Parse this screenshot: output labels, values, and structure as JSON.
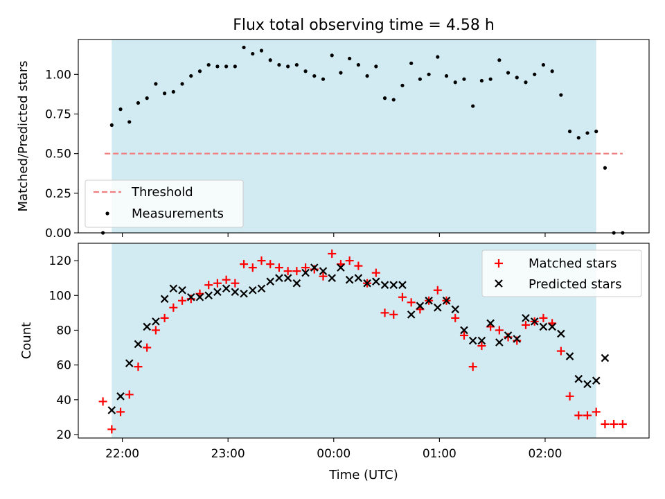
{
  "figure": {
    "title": "Flux total observing time = 4.58 h"
  },
  "chart_data": [
    {
      "type": "scatter",
      "panel": "top",
      "ylabel": "Matched/Predicted stars",
      "xlabel": "",
      "x_is_time_utc": true,
      "xlim": [
        "21:35",
        "02:59"
      ],
      "ylim": [
        0.0,
        1.22
      ],
      "yticks": [
        0.0,
        0.25,
        0.5,
        0.75,
        1.0
      ],
      "ytick_labels": [
        "0.00",
        "0.25",
        "0.50",
        "0.75",
        "1.00"
      ],
      "xtick_labels": [
        "22:00",
        "23:00",
        "00:00",
        "01:00",
        "02:00"
      ],
      "xticks": [
        "22:00",
        "23:00",
        "00:00",
        "01:00",
        "02:00"
      ],
      "shaded_span": {
        "from": "21:54",
        "to": "02:29",
        "color": "#add8e6"
      },
      "threshold": {
        "name": "Threshold",
        "value": 0.5,
        "from": "21:50",
        "to": "02:44",
        "color": "#f08080"
      },
      "legend": {
        "placement": "lower-left",
        "entries": [
          "Threshold",
          "Measurements"
        ]
      },
      "series": [
        {
          "name": "Measurements",
          "color": "#000000",
          "marker": "dot",
          "x": [
            "21:49",
            "21:54",
            "21:59",
            "22:04",
            "22:09",
            "22:14",
            "22:19",
            "22:24",
            "22:29",
            "22:34",
            "22:39",
            "22:44",
            "22:49",
            "22:54",
            "22:59",
            "23:04",
            "23:09",
            "23:14",
            "23:19",
            "23:24",
            "23:29",
            "23:34",
            "23:39",
            "23:44",
            "23:49",
            "23:54",
            "23:59",
            "00:04",
            "00:09",
            "00:14",
            "00:19",
            "00:24",
            "00:29",
            "00:34",
            "00:39",
            "00:44",
            "00:49",
            "00:54",
            "00:59",
            "01:04",
            "01:09",
            "01:14",
            "01:19",
            "01:24",
            "01:29",
            "01:34",
            "01:39",
            "01:44",
            "01:49",
            "01:54",
            "01:59",
            "02:04",
            "02:09",
            "02:14",
            "02:19",
            "02:24",
            "02:29",
            "02:34",
            "02:39",
            "02:44"
          ],
          "values": [
            0.0,
            0.68,
            0.78,
            0.7,
            0.82,
            0.85,
            0.94,
            0.88,
            0.89,
            0.94,
            0.99,
            1.02,
            1.06,
            1.05,
            1.05,
            1.05,
            1.17,
            1.13,
            1.15,
            1.09,
            1.06,
            1.05,
            1.06,
            1.02,
            0.99,
            0.97,
            1.12,
            1.01,
            1.1,
            1.06,
            0.99,
            1.05,
            0.85,
            0.84,
            0.93,
            1.07,
            0.97,
            1.0,
            1.11,
            0.99,
            0.95,
            0.97,
            0.8,
            0.96,
            0.97,
            1.09,
            1.01,
            0.98,
            0.95,
            1.0,
            1.06,
            1.02,
            0.87,
            0.64,
            0.6,
            0.63,
            0.64,
            0.41,
            0.0,
            0.0
          ]
        }
      ]
    },
    {
      "type": "scatter",
      "panel": "bottom",
      "ylabel": "Count",
      "xlabel": "Time (UTC)",
      "x_is_time_utc": true,
      "xlim": [
        "21:35",
        "02:59"
      ],
      "ylim": [
        18,
        130
      ],
      "yticks": [
        20,
        40,
        60,
        80,
        100,
        120
      ],
      "ytick_labels": [
        "20",
        "40",
        "60",
        "80",
        "100",
        "120"
      ],
      "xtick_labels": [
        "22:00",
        "23:00",
        "00:00",
        "01:00",
        "02:00"
      ],
      "xticks": [
        "22:00",
        "23:00",
        "00:00",
        "01:00",
        "02:00"
      ],
      "shaded_span": {
        "from": "21:54",
        "to": "02:29",
        "color": "#add8e6"
      },
      "legend": {
        "placement": "top-right",
        "entries": [
          "Matched stars",
          "Predicted stars"
        ]
      },
      "series": [
        {
          "name": "Matched stars",
          "color": "#ff0000",
          "marker": "plus",
          "x": [
            "21:49",
            "21:54",
            "21:59",
            "22:04",
            "22:09",
            "22:14",
            "22:19",
            "22:24",
            "22:29",
            "22:34",
            "22:39",
            "22:44",
            "22:49",
            "22:54",
            "22:59",
            "23:04",
            "23:09",
            "23:14",
            "23:19",
            "23:24",
            "23:29",
            "23:34",
            "23:39",
            "23:44",
            "23:49",
            "23:54",
            "23:59",
            "00:04",
            "00:09",
            "00:14",
            "00:19",
            "00:24",
            "00:29",
            "00:34",
            "00:39",
            "00:44",
            "00:49",
            "00:54",
            "00:59",
            "01:04",
            "01:09",
            "01:14",
            "01:19",
            "01:24",
            "01:29",
            "01:34",
            "01:39",
            "01:44",
            "01:49",
            "01:54",
            "01:59",
            "02:04",
            "02:09",
            "02:14",
            "02:19",
            "02:24",
            "02:29",
            "02:34",
            "02:39",
            "02:44"
          ],
          "values": [
            39,
            23,
            33,
            43,
            59,
            70,
            80,
            87,
            93,
            97,
            98,
            101,
            106,
            107,
            109,
            107,
            118,
            116,
            120,
            118,
            116,
            114,
            114,
            116,
            115,
            111,
            124,
            118,
            120,
            117,
            107,
            113,
            90,
            89,
            99,
            96,
            92,
            97,
            103,
            97,
            87,
            77,
            59,
            71,
            82,
            80,
            76,
            74,
            83,
            85,
            87,
            84,
            68,
            42,
            31,
            31,
            33,
            26,
            26,
            26
          ]
        },
        {
          "name": "Predicted stars",
          "color": "#000000",
          "marker": "x",
          "x": [
            "21:54",
            "21:59",
            "22:04",
            "22:09",
            "22:14",
            "22:19",
            "22:24",
            "22:29",
            "22:34",
            "22:39",
            "22:44",
            "22:49",
            "22:54",
            "22:59",
            "23:04",
            "23:09",
            "23:14",
            "23:19",
            "23:24",
            "23:29",
            "23:34",
            "23:39",
            "23:44",
            "23:49",
            "23:54",
            "23:59",
            "00:04",
            "00:09",
            "00:14",
            "00:19",
            "00:24",
            "00:29",
            "00:34",
            "00:39",
            "00:44",
            "00:49",
            "00:54",
            "00:59",
            "01:04",
            "01:09",
            "01:14",
            "01:19",
            "01:24",
            "01:29",
            "01:34",
            "01:39",
            "01:44",
            "01:49",
            "01:54",
            "01:59",
            "02:04",
            "02:09",
            "02:14",
            "02:19",
            "02:24",
            "02:29",
            "02:34"
          ],
          "values": [
            34,
            42,
            61,
            72,
            82,
            85,
            98,
            104,
            103,
            99,
            99,
            100,
            102,
            104,
            102,
            101,
            103,
            104,
            108,
            110,
            110,
            107,
            113,
            116,
            114,
            110,
            116,
            109,
            110,
            107,
            108,
            106,
            106,
            106,
            89,
            94,
            97,
            93,
            97,
            92,
            80,
            74,
            74,
            84,
            73,
            77,
            75,
            87,
            85,
            82,
            82,
            78,
            65,
            52,
            49,
            51,
            64
          ]
        }
      ]
    }
  ]
}
